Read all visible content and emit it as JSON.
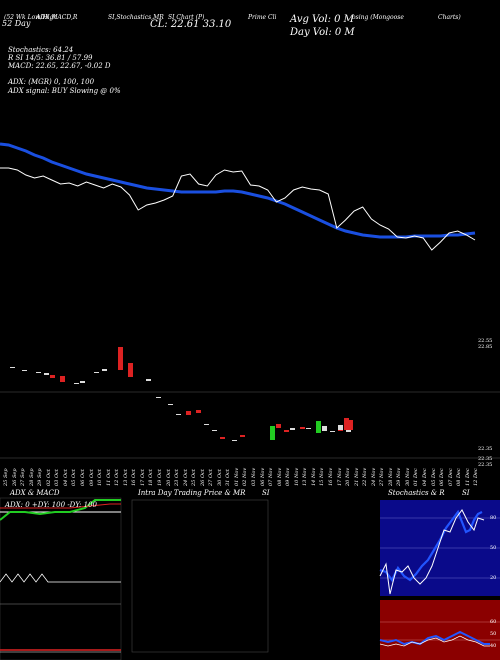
{
  "header": {
    "line1": [
      "(52 Wk Low/High",
      "ADX,MACD,R",
      "SI,Stochastics,MR",
      "SI Chart (P)",
      "Prime Cli",
      "osing (Mongoose",
      "Charts)"
    ],
    "left_small": "52 Day",
    "cl_value": "CL: 22.61 33.10",
    "avg_vol": "Avg Vol: 0  M",
    "day_vol": "Day Vol: 0  M",
    "stochastics": "Stochastics: 64.24",
    "rsi": "R                    SI 14/5: 36.81 / 57.99",
    "macd": "MACD: 22.65,  22.67,  -0.02  D",
    "adx": "ADX:                    (MGR) 0,  100,  100",
    "adx_signal": "ADX  signal:                                          BUY Slowing @ 0%"
  },
  "axis": {
    "right_labels": [
      "22.55",
      "22.85",
      "22.35",
      "22.35",
      "22.35"
    ],
    "date_labels": [
      "25 Sep",
      "26 Sep",
      "27 Sep",
      "28 Sep",
      "29 Sep",
      "02 Oct",
      "03 Oct",
      "04 Oct",
      "05 Oct",
      "06 Oct",
      "09 Oct",
      "10 Oct",
      "11 Oct",
      "12 Oct",
      "13 Oct",
      "16 Oct",
      "17 Oct",
      "18 Oct",
      "19 Oct",
      "20 Oct",
      "23 Oct",
      "24 Oct",
      "25 Oct",
      "26 Oct",
      "27 Oct",
      "30 Oct",
      "31 Oct",
      "01 Nov",
      "02 Nov",
      "03 Nov",
      "06 Nov",
      "07 Nov",
      "08 Nov",
      "09 Nov",
      "10 Nov",
      "13 Nov",
      "14 Nov",
      "15 Nov",
      "16 Nov",
      "17 Nov",
      "20 Nov",
      "21 Nov",
      "22 Nov",
      "24 Nov",
      "27 Nov",
      "28 Nov",
      "29 Nov",
      "30 Nov",
      "01 Dec",
      "04 Dec",
      "05 Dec",
      "06 Dec",
      "07 Dec",
      "08 Dec",
      "11 Dec",
      "12 Dec"
    ]
  },
  "panels": {
    "adx_title": "ADX  & MACD",
    "adx_readout": "ADX: 0  +DY: 100  -DY: 100",
    "intraday_title": "Intra  Day Trading Price  & MR",
    "intraday_title2": "SI",
    "stoch_title": "Stochastics & R",
    "stoch_title2": "SI",
    "stoch_ticks": [
      "80",
      "50",
      "20"
    ],
    "rsi_ticks": [
      "60",
      "50",
      "40"
    ]
  },
  "colors": {
    "ma_line": "#1a4fe0",
    "price_line": "#ffffff",
    "up": "#22cc22",
    "down": "#dd2222",
    "rsi_bg": "#8b0000",
    "stoch_bg": "#0a0a8a"
  },
  "chart_data": {
    "type": "line",
    "x": [
      0,
      1,
      2,
      3,
      4,
      5,
      6,
      7,
      8,
      9,
      10,
      11,
      12,
      13,
      14,
      15,
      16,
      17,
      18,
      19,
      20,
      21,
      22,
      23,
      24,
      25,
      26,
      27,
      28,
      29,
      30,
      31,
      32,
      33,
      34,
      35,
      36,
      37,
      38,
      39,
      40,
      41,
      42,
      43,
      44,
      45,
      46,
      47,
      48,
      49,
      50,
      51,
      52,
      53,
      54,
      55
    ],
    "series": [
      {
        "values": [
          168,
          168,
          170,
          175,
          178,
          176,
          180,
          184,
          183,
          186,
          182,
          185,
          188,
          184,
          187,
          195,
          210,
          205,
          203,
          200,
          196,
          176,
          174,
          184,
          186,
          175,
          170,
          172,
          171,
          185,
          186,
          190,
          202,
          198,
          190,
          187,
          189,
          190,
          194,
          228,
          220,
          211,
          207,
          219,
          225,
          229,
          237,
          238,
          236,
          238,
          250,
          242,
          233,
          231,
          235,
          240
        ]
      },
      {
        "values": [
          144,
          145,
          148,
          151,
          155,
          158,
          162,
          165,
          168,
          171,
          174,
          176,
          178,
          180,
          182,
          184,
          186,
          188,
          189,
          190,
          191,
          192,
          192,
          192,
          192,
          192,
          191,
          191,
          192,
          194,
          196,
          198,
          201,
          204,
          208,
          212,
          216,
          220,
          224,
          228,
          231,
          233,
          235,
          236,
          237,
          237,
          237,
          237,
          236,
          236,
          236,
          236,
          235,
          235,
          234,
          233
        ]
      }
    ]
  }
}
